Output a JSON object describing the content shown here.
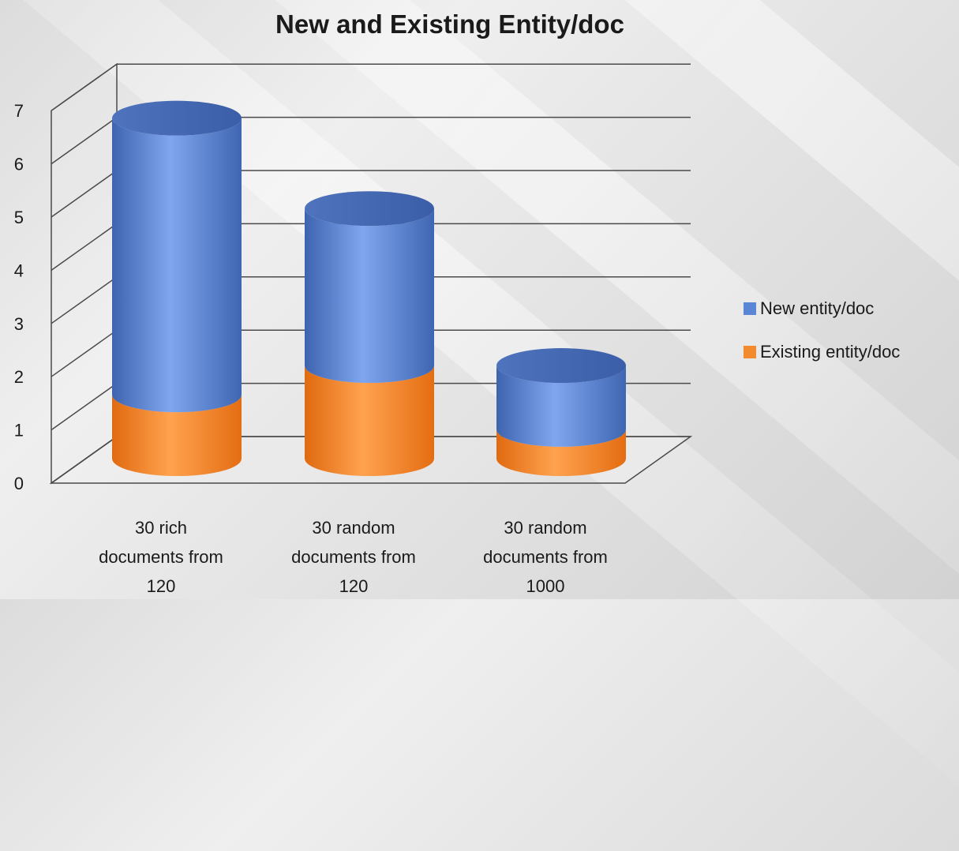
{
  "chart_data": {
    "type": "bar",
    "stacked": true,
    "style": "3d-cylinder",
    "title": "New and Existing Entity/doc",
    "xlabel": "",
    "ylabel": "",
    "ylim": [
      0,
      7
    ],
    "yticks": [
      0,
      1,
      2,
      3,
      4,
      5,
      6,
      7
    ],
    "grid": true,
    "legend_position": "right",
    "categories": [
      [
        "30 rich",
        "documents from",
        "120"
      ],
      [
        "30 random",
        "documents from",
        "120"
      ],
      [
        "30 random",
        "documents from",
        "1000"
      ]
    ],
    "series": [
      {
        "name": "Existing entity/doc",
        "color": "#f28a2e",
        "values": [
          1.2,
          1.75,
          0.55
        ]
      },
      {
        "name": "New entity/doc",
        "color": "#5b86d6",
        "values": [
          5.2,
          2.95,
          1.2
        ]
      }
    ],
    "legend_order": [
      "New entity/doc",
      "Existing entity/doc"
    ]
  }
}
